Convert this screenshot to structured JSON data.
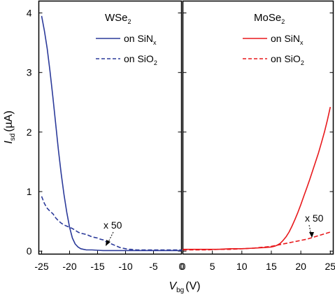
{
  "chart_data": [
    {
      "type": "line",
      "panel": "left",
      "title": "",
      "material": {
        "base": "WSe",
        "sub": "2"
      },
      "xlabel": {
        "main": "V",
        "sub": "bg",
        "unit": "(V)"
      },
      "ylabel": {
        "main": "I",
        "sub": "sd",
        "unit": "(µA)"
      },
      "xlim": [
        -25.5,
        0
      ],
      "ylim": [
        -0.05,
        4.2
      ],
      "xticks": [
        "-25",
        "-20",
        "-15",
        "-10",
        "-5",
        "0"
      ],
      "xtick_values": [
        -25,
        -20,
        -15,
        -10,
        -5,
        0
      ],
      "yticks": [
        "0",
        "1",
        "2",
        "3",
        "4"
      ],
      "ytick_values": [
        0,
        1,
        2,
        3,
        4
      ],
      "legend_position": "top-right",
      "annotation": {
        "text": "x 50",
        "x": -13.2,
        "y": 0.47
      },
      "series": [
        {
          "name": {
            "pre": "on SiN",
            "sub": "x"
          },
          "style": "solid",
          "color": "#2b3a9a",
          "x": [
            -25,
            -24.5,
            -24,
            -23.5,
            -23,
            -22.5,
            -22,
            -21.5,
            -21,
            -20.5,
            -20,
            -19.5,
            -19,
            -18.5,
            -18,
            -17.5,
            -17,
            -16,
            -15,
            -14,
            -13,
            -12,
            -10,
            -8,
            -6,
            -4,
            -2,
            0
          ],
          "y": [
            3.95,
            3.7,
            3.4,
            3.02,
            2.6,
            2.15,
            1.7,
            1.3,
            0.95,
            0.65,
            0.4,
            0.22,
            0.12,
            0.07,
            0.04,
            0.03,
            0.02,
            0.02,
            0.015,
            0.01,
            0.01,
            0.01,
            0.01,
            0.01,
            0.01,
            0.01,
            0.01,
            0.01
          ]
        },
        {
          "name": {
            "pre": "on SiO",
            "sub": "2"
          },
          "style": "dashed",
          "color": "#2b3a9a",
          "x": [
            -25,
            -24.5,
            -24,
            -23.5,
            -23,
            -22.5,
            -22,
            -21.5,
            -21,
            -20.5,
            -20,
            -19.5,
            -19,
            -18.5,
            -18,
            -17.5,
            -17,
            -16.5,
            -16,
            -15.5,
            -15,
            -14.5,
            -14,
            -13.5,
            -13,
            -12.5,
            -12,
            -11.5,
            -11,
            -10.5,
            -10,
            -9.5,
            -9,
            -8,
            -7,
            -6,
            -5,
            -4,
            -3,
            -2,
            -1,
            0
          ],
          "y": [
            0.92,
            0.8,
            0.72,
            0.67,
            0.63,
            0.56,
            0.51,
            0.47,
            0.44,
            0.42,
            0.4,
            0.38,
            0.35,
            0.32,
            0.3,
            0.29,
            0.28,
            0.26,
            0.24,
            0.23,
            0.22,
            0.2,
            0.19,
            0.16,
            0.14,
            0.12,
            0.1,
            0.08,
            0.06,
            0.05,
            0.04,
            0.03,
            0.03,
            0.02,
            0.02,
            0.02,
            0.02,
            0.02,
            0.02,
            0.02,
            0.02,
            0.02
          ]
        }
      ]
    },
    {
      "type": "line",
      "panel": "right",
      "title": "",
      "material": {
        "base": "MoSe",
        "sub": "2"
      },
      "xlabel": {
        "main": "V",
        "sub": "bg",
        "unit": "(V)"
      },
      "xlim": [
        0,
        25.5
      ],
      "ylim": [
        -0.05,
        4.2
      ],
      "xticks": [
        "0",
        "5",
        "10",
        "15",
        "20",
        "25"
      ],
      "xtick_values": [
        0,
        5,
        10,
        15,
        20,
        25
      ],
      "legend_position": "top-right",
      "annotation": {
        "text": "x 50",
        "x": 22.3,
        "y": 0.5
      },
      "series": [
        {
          "name": {
            "pre": "on SiN",
            "sub": "x"
          },
          "style": "solid",
          "color": "#e8191c",
          "x": [
            0,
            2,
            4,
            6,
            8,
            10,
            12,
            14,
            15,
            15.5,
            16,
            16.5,
            17,
            17.5,
            18,
            18.5,
            19,
            19.5,
            20,
            20.5,
            21,
            21.5,
            22,
            22.5,
            23,
            23.5,
            24,
            24.5,
            25
          ],
          "y": [
            0.03,
            0.03,
            0.03,
            0.03,
            0.04,
            0.04,
            0.05,
            0.06,
            0.07,
            0.08,
            0.1,
            0.13,
            0.18,
            0.24,
            0.32,
            0.42,
            0.53,
            0.65,
            0.78,
            0.92,
            1.06,
            1.2,
            1.35,
            1.5,
            1.65,
            1.82,
            2.0,
            2.2,
            2.42
          ]
        },
        {
          "name": {
            "pre": "on SiO",
            "sub": "2"
          },
          "style": "dashed",
          "color": "#e8191c",
          "x": [
            0,
            2,
            4,
            6,
            8,
            10,
            12,
            13,
            14,
            15,
            16,
            17,
            18,
            19,
            20,
            21,
            22,
            23,
            24,
            25
          ],
          "y": [
            0.02,
            0.02,
            0.02,
            0.03,
            0.03,
            0.04,
            0.05,
            0.06,
            0.07,
            0.08,
            0.1,
            0.12,
            0.14,
            0.16,
            0.18,
            0.2,
            0.23,
            0.26,
            0.29,
            0.32
          ]
        }
      ]
    }
  ]
}
